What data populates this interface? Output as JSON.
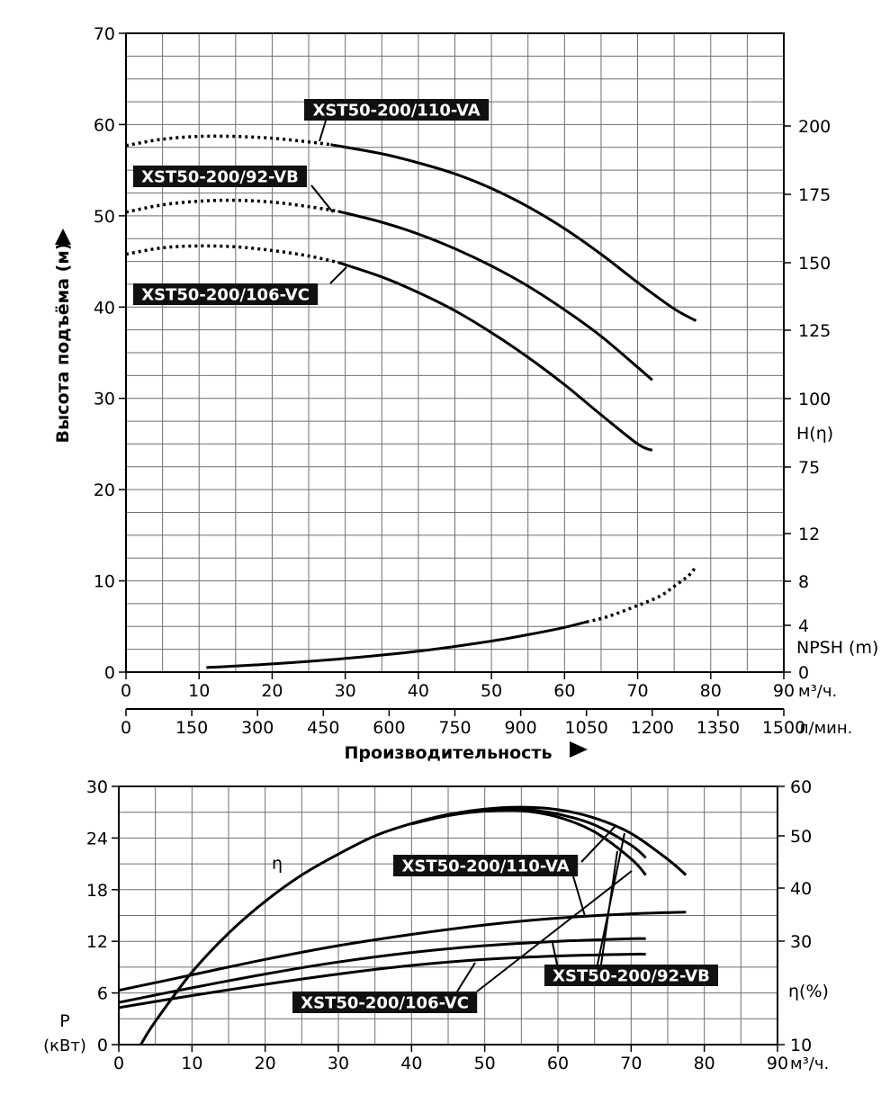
{
  "chart_data": [
    {
      "type": "line",
      "xlabel": "Производительность",
      "ylabel": "Высота подъёма (м)",
      "x_unit": "м³/ч.",
      "x2_unit": "л/мин.",
      "xlim": [
        0,
        90
      ],
      "ylim": [
        0,
        70
      ],
      "x_ticks": [
        0,
        10,
        20,
        30,
        40,
        50,
        60,
        70,
        80,
        90
      ],
      "x_ticks_lpm": [
        0,
        150,
        300,
        450,
        600,
        750,
        900,
        1050,
        1200,
        1350,
        1500
      ],
      "y_ticks": [
        0,
        10,
        20,
        30,
        40,
        50,
        60,
        70
      ],
      "right_axis_title_head": "H(η)",
      "right_axis_title_npsh": "NPSH (m)",
      "right_ticks_head": [
        "200",
        "175",
        "150",
        "125",
        "100",
        "75"
      ],
      "right_ticks_npsh": [
        "12",
        "8",
        "4",
        "0"
      ],
      "grid": true,
      "series": [
        {
          "name": "XST50-200/110-VA",
          "dotted_x": [
            0,
            5,
            10,
            15,
            20,
            25,
            28
          ],
          "dotted_y": [
            57.7,
            58.4,
            58.7,
            58.7,
            58.5,
            58.1,
            57.8
          ],
          "x": [
            28,
            35,
            40,
            45,
            50,
            55,
            60,
            65,
            70,
            75,
            78
          ],
          "y": [
            57.8,
            56.8,
            55.8,
            54.6,
            53.0,
            51.0,
            48.6,
            45.8,
            42.7,
            39.8,
            38.5
          ]
        },
        {
          "name": "XST50-200/92-VB",
          "dotted_x": [
            0,
            5,
            10,
            15,
            20,
            25,
            29
          ],
          "dotted_y": [
            50.4,
            51.2,
            51.6,
            51.7,
            51.5,
            51.0,
            50.5
          ],
          "x": [
            29,
            35,
            40,
            45,
            50,
            55,
            60,
            65,
            70,
            72
          ],
          "y": [
            50.5,
            49.3,
            48.0,
            46.4,
            44.5,
            42.3,
            39.7,
            36.8,
            33.4,
            32.0
          ]
        },
        {
          "name": "XST50-200/106-VC",
          "dotted_x": [
            0,
            5,
            10,
            15,
            20,
            25,
            29
          ],
          "dotted_y": [
            45.8,
            46.5,
            46.7,
            46.6,
            46.2,
            45.6,
            44.9
          ],
          "x": [
            29,
            35,
            40,
            45,
            50,
            55,
            60,
            65,
            70,
            72
          ],
          "y": [
            44.9,
            43.3,
            41.6,
            39.6,
            37.2,
            34.5,
            31.5,
            28.2,
            25.0,
            24.3
          ]
        }
      ],
      "npsh": {
        "x": [
          11,
          20,
          30,
          40,
          50,
          55,
          60,
          63
        ],
        "y": [
          0.5,
          0.9,
          1.5,
          2.3,
          3.4,
          4.1,
          4.9,
          5.5
        ],
        "dotted_x": [
          63,
          66,
          70,
          73,
          75,
          77,
          78
        ],
        "dotted_y": [
          5.5,
          6.1,
          7.3,
          8.3,
          9.4,
          10.6,
          11.6
        ]
      }
    },
    {
      "type": "line",
      "xlabel": "",
      "ylabel": "P",
      "ylabel_unit": "(кВт)",
      "x_unit": "м³/ч.",
      "xlim": [
        0,
        90
      ],
      "ylim": [
        0,
        30
      ],
      "x_ticks": [
        0,
        10,
        20,
        30,
        40,
        50,
        60,
        70,
        80,
        90
      ],
      "y_ticks": [
        0,
        6,
        12,
        18,
        24,
        30
      ],
      "right_axis_title": "η(%)",
      "right_ticks": [
        "60",
        "50",
        "40",
        "30",
        "10"
      ],
      "right_ticks_values": [
        60,
        50,
        40,
        30,
        10
      ],
      "grid": true,
      "efficiency_label": "η",
      "efficiency": [
        {
          "name": "XST50-200/110-VA",
          "x": [
            3,
            5,
            10,
            15,
            20,
            25,
            30,
            35,
            40,
            45,
            50,
            55,
            60,
            65,
            70,
            75,
            77.5
          ],
          "y": [
            10,
            14.5,
            24,
            31.5,
            37.5,
            42.5,
            46.5,
            50,
            52.5,
            54.3,
            55.4,
            55.8,
            55.3,
            53.6,
            50.5,
            45.5,
            42.5
          ]
        },
        {
          "name": "XST50-200/92-VB",
          "x": [
            40,
            45,
            50,
            55,
            60,
            65,
            70,
            72
          ],
          "y": [
            52.5,
            54.3,
            55.3,
            55.4,
            54.4,
            52.2,
            48.2,
            45.8
          ]
        },
        {
          "name": "XST50-200/106-VC",
          "x": [
            40,
            45,
            50,
            55,
            60,
            65,
            70,
            72
          ],
          "y": [
            52.4,
            54.1,
            55.0,
            55.1,
            53.8,
            50.8,
            45.6,
            42.5
          ]
        }
      ],
      "power": [
        {
          "name": "XST50-200/110-VA",
          "x": [
            0,
            10,
            20,
            30,
            40,
            50,
            60,
            70,
            77.5
          ],
          "y": [
            6.3,
            8.1,
            9.9,
            11.5,
            12.8,
            13.9,
            14.7,
            15.2,
            15.4
          ]
        },
        {
          "name": "XST50-200/92-VB",
          "x": [
            0,
            10,
            20,
            30,
            40,
            50,
            60,
            70,
            72
          ],
          "y": [
            4.9,
            6.6,
            8.2,
            9.6,
            10.7,
            11.5,
            12.0,
            12.3,
            12.3
          ]
        },
        {
          "name": "XST50-200/106-VC",
          "x": [
            0,
            10,
            20,
            30,
            40,
            50,
            60,
            70,
            72
          ],
          "y": [
            4.3,
            5.7,
            7.0,
            8.2,
            9.2,
            9.9,
            10.3,
            10.5,
            10.5
          ]
        }
      ]
    }
  ]
}
